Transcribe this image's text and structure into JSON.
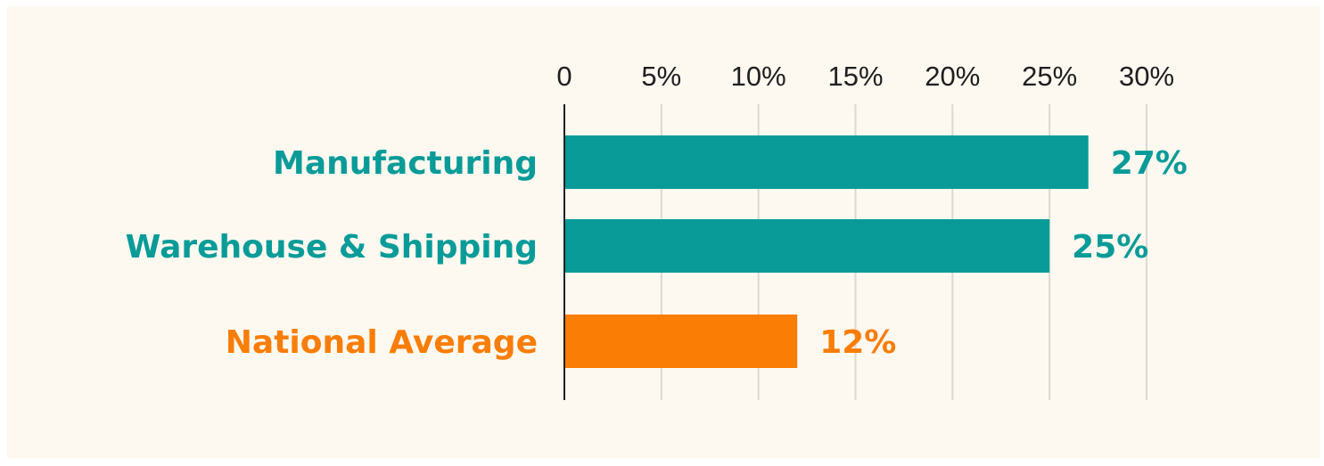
{
  "colors": {
    "background": "#fdf8f0",
    "grid": "#dcd9d2",
    "axis": "#1f1f1f",
    "teal": "#089b98",
    "orange": "#fa7d05"
  },
  "chart_data": {
    "type": "bar",
    "orientation": "horizontal",
    "categories": [
      "Manufacturing",
      "Warehouse & Shipping",
      "National Average"
    ],
    "values": [
      27,
      25,
      12
    ],
    "value_labels": [
      "27%",
      "25%",
      "12%"
    ],
    "bar_colors": [
      "#089b98",
      "#089b98",
      "#fa7d05"
    ],
    "xlim": [
      0,
      30
    ],
    "xticks": [
      0,
      5,
      10,
      15,
      20,
      25,
      30
    ],
    "xtick_labels": [
      "0",
      "5%",
      "10%",
      "15%",
      "20%",
      "25%",
      "30%"
    ],
    "x_axis_position": "top",
    "grid": true,
    "legend": "none"
  }
}
